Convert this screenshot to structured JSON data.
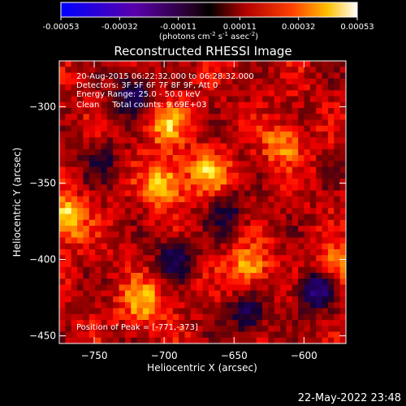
{
  "colorbar": {
    "ticks": [
      "-0.00053",
      "-0.00032",
      "-0.00011",
      "0.00011",
      "0.00032",
      "0.00053"
    ],
    "tick_values": [
      -0.00053,
      -0.00032,
      -0.00011,
      0.00011,
      0.00032,
      0.00053
    ],
    "units": "(photons cm",
    "units_exp1": "-2",
    "units_mid": " s",
    "units_exp2": "-1",
    "units_mid2": " asec",
    "units_exp3": "-2",
    "units_end": ")"
  },
  "chart_data": {
    "type": "heatmap",
    "title": "Reconstructed RHESSI Image",
    "xlabel": "Heliocentric X (arcsec)",
    "ylabel": "Heliocentric Y (arcsec)",
    "xlim": [
      -775,
      -570
    ],
    "ylim": [
      -455,
      -270
    ],
    "xticks": [
      -750,
      -700,
      -650,
      -600
    ],
    "yticks": [
      -300,
      -350,
      -400,
      -450
    ],
    "colormap": "hot (blue-purple negative, black-red-yellow-white positive)",
    "value_range": [
      -0.00053,
      0.00053
    ],
    "annotations": [
      "20-Aug-2015 06:22:32.000 to 06:28:32.000",
      "Detectors: 3F 5F 6F 7F 8F 9F, Att 0",
      "Energy Range: 25.0 - 50.0 keV",
      "Clean     Total counts: 9.69E+03"
    ],
    "peak_label": "Position of Peak = [-771,-373]",
    "peak": [
      -771,
      -373
    ],
    "hotspots": [
      {
        "x": -771,
        "y": -373,
        "level": 1.0
      },
      {
        "x": -700,
        "y": -350,
        "level": 0.9
      },
      {
        "x": -715,
        "y": -428,
        "level": 0.85
      },
      {
        "x": -668,
        "y": -343,
        "level": 0.75
      },
      {
        "x": -698,
        "y": -312,
        "level": 0.7
      },
      {
        "x": -640,
        "y": -405,
        "level": 0.75
      },
      {
        "x": -575,
        "y": -405,
        "level": 0.7
      },
      {
        "x": -615,
        "y": -325,
        "level": 0.65
      }
    ],
    "coldspots": [
      {
        "x": -722,
        "y": -292,
        "level": -0.45
      },
      {
        "x": -693,
        "y": -400,
        "level": -0.4
      },
      {
        "x": -590,
        "y": -420,
        "level": -0.6
      },
      {
        "x": -640,
        "y": -435,
        "level": -0.4
      },
      {
        "x": -745,
        "y": -335,
        "level": -0.25
      },
      {
        "x": -655,
        "y": -370,
        "level": -0.3
      }
    ]
  },
  "timestamp": "22-May-2022 23:48"
}
